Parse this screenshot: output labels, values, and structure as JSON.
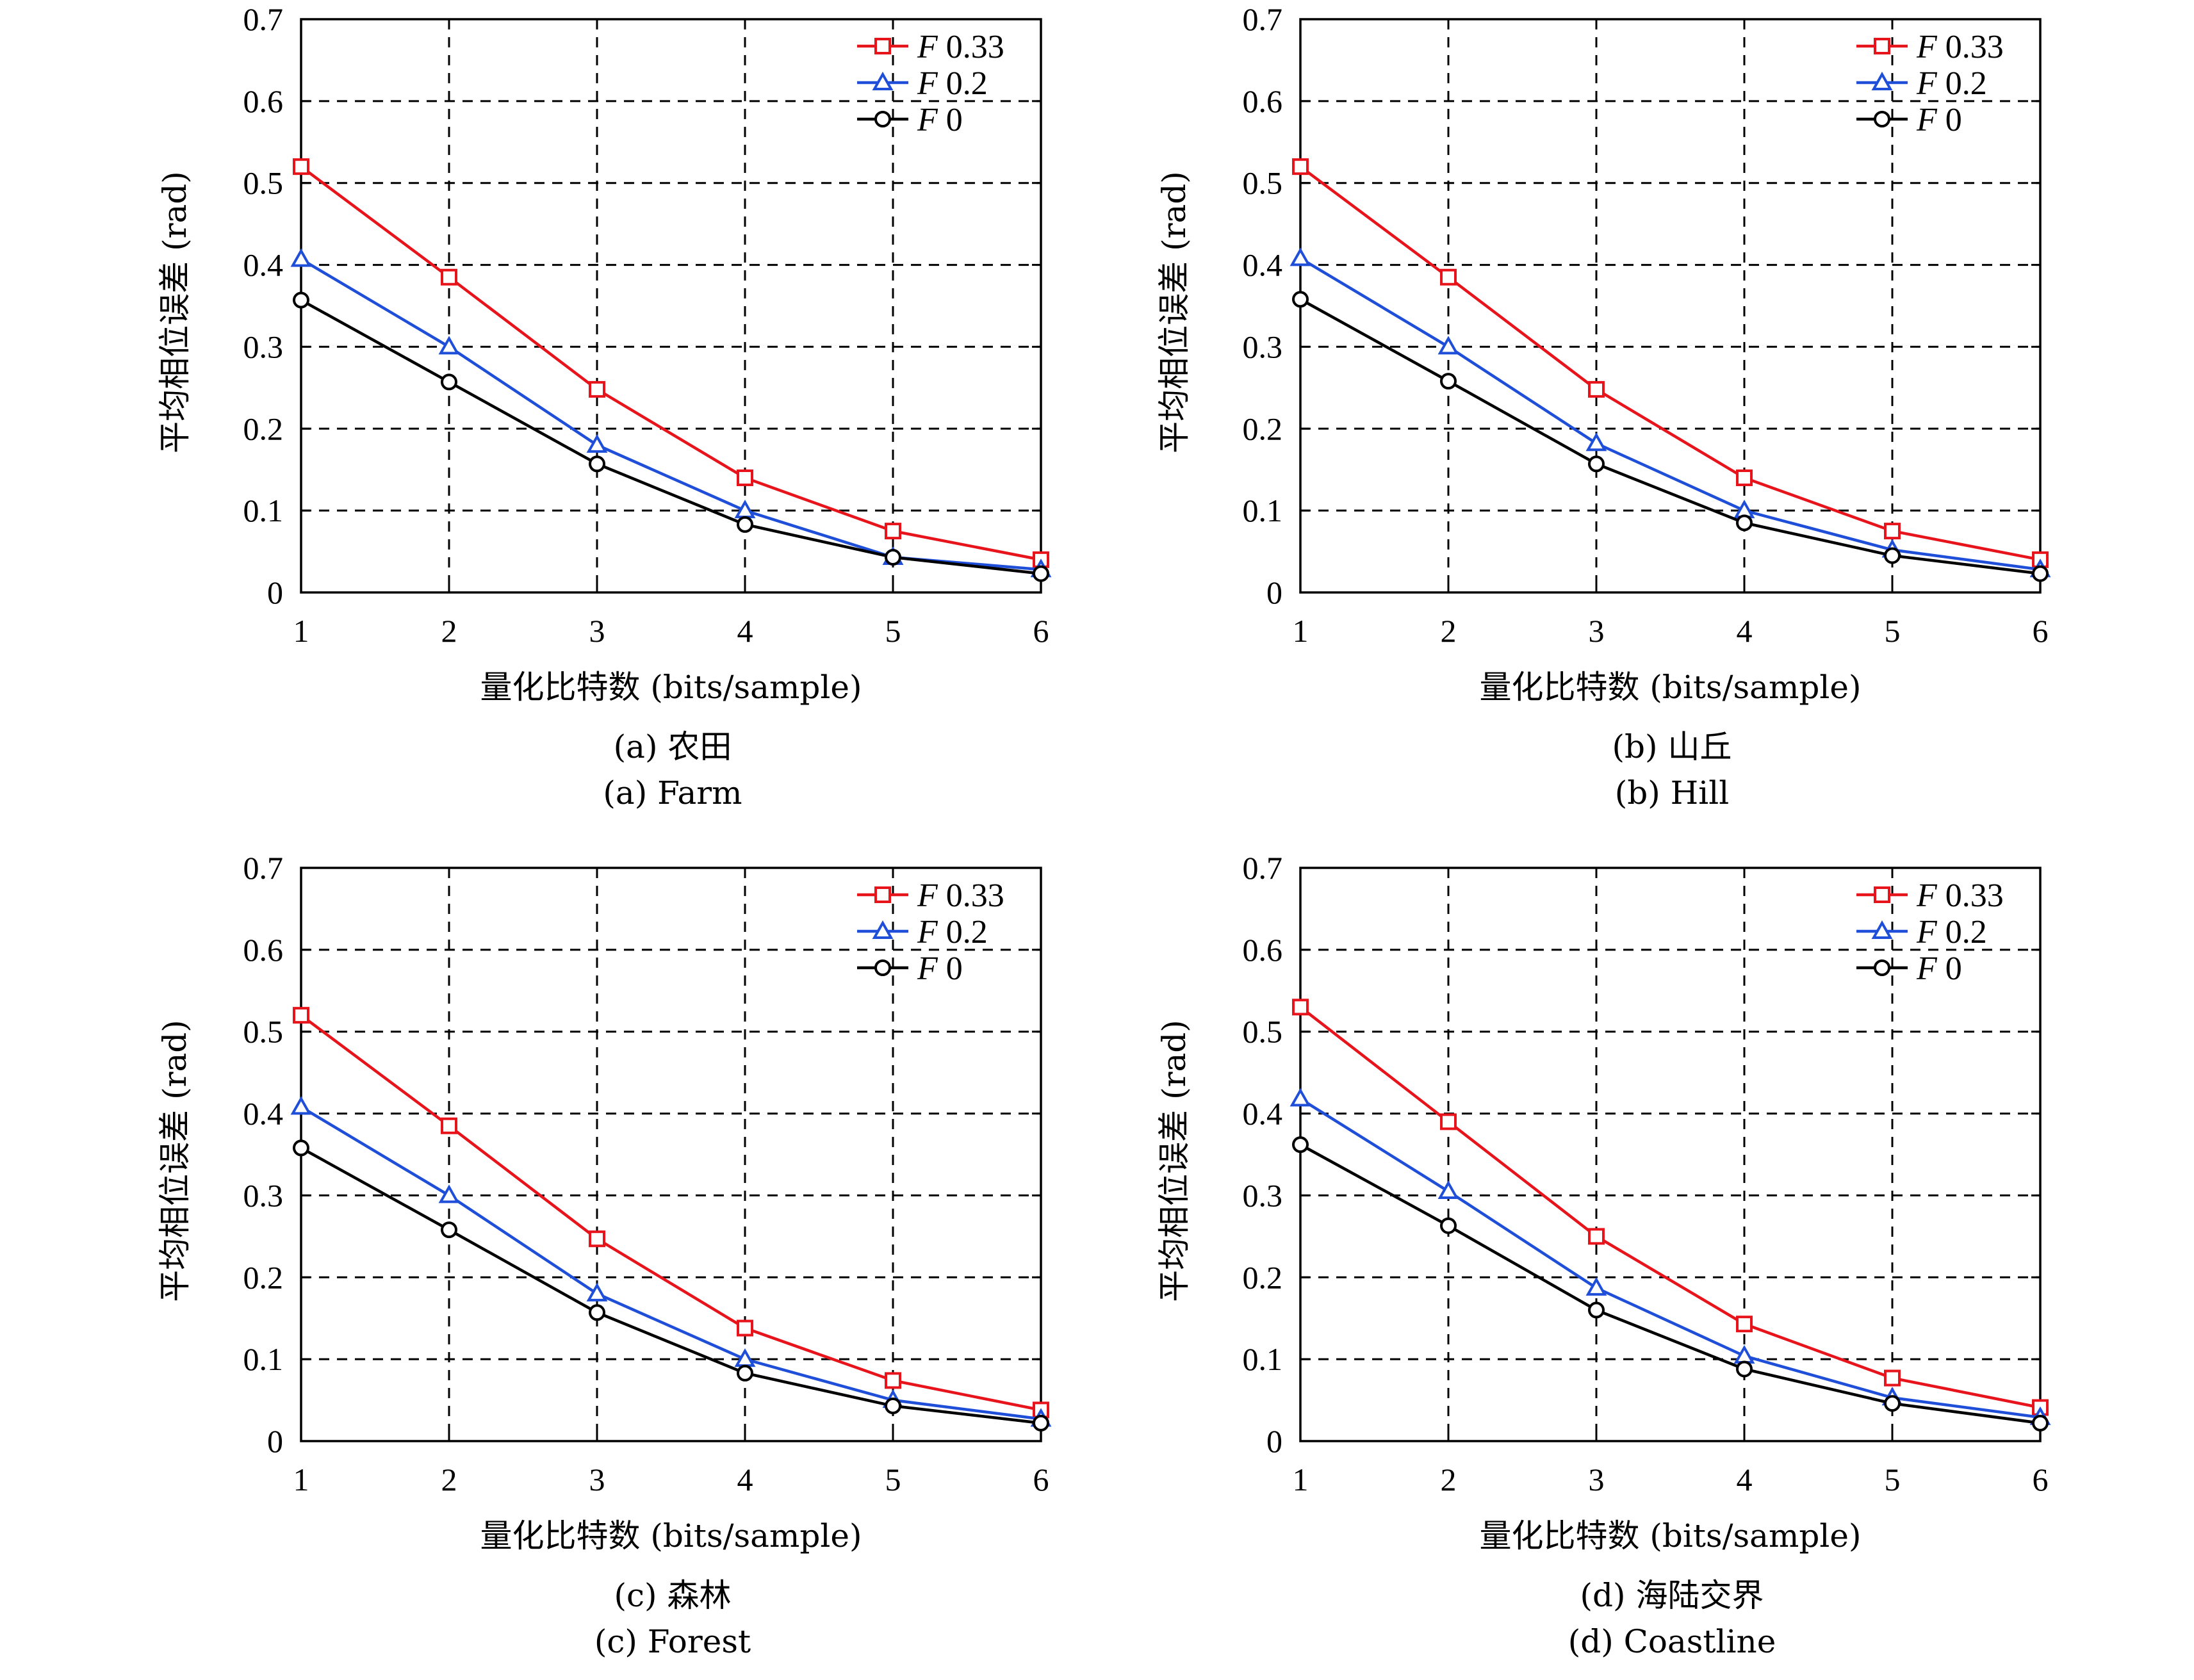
{
  "chart_data": [
    {
      "type": "line",
      "caption_cn": "(a) 农田",
      "caption_en": "(a) Farm",
      "xlabel": "量化比特数 (bits/sample)",
      "ylabel": "平均相位误差 (rad)",
      "x": [
        1,
        2,
        3,
        4,
        5,
        6
      ],
      "xlim": [
        1,
        6
      ],
      "ylim": [
        0,
        0.7
      ],
      "xticks": [
        "1",
        "2",
        "3",
        "4",
        "5",
        "6"
      ],
      "yticks": [
        "0",
        "0.1",
        "0.2",
        "0.3",
        "0.4",
        "0.5",
        "0.6",
        "0.7"
      ],
      "grid": true,
      "legend_position": "top-right",
      "series": [
        {
          "name_prefix": "F",
          "name_value": "0.33",
          "color": "#e8141c",
          "marker": "square",
          "values": [
            0.52,
            0.385,
            0.248,
            0.14,
            0.075,
            0.04
          ]
        },
        {
          "name_prefix": "F",
          "name_value": "0.2",
          "color": "#1f4fd8",
          "marker": "triangle",
          "values": [
            0.407,
            0.3,
            0.18,
            0.1,
            0.043,
            0.028
          ]
        },
        {
          "name_prefix": "F",
          "name_value": "0",
          "color": "#000000",
          "marker": "circle",
          "values": [
            0.357,
            0.257,
            0.157,
            0.083,
            0.043,
            0.023
          ]
        }
      ]
    },
    {
      "type": "line",
      "caption_cn": "(b) 山丘",
      "caption_en": "(b) Hill",
      "xlabel": "量化比特数 (bits/sample)",
      "ylabel": "平均相位误差 (rad)",
      "x": [
        1,
        2,
        3,
        4,
        5,
        6
      ],
      "xlim": [
        1,
        6
      ],
      "ylim": [
        0,
        0.7
      ],
      "xticks": [
        "1",
        "2",
        "3",
        "4",
        "5",
        "6"
      ],
      "yticks": [
        "0",
        "0.1",
        "0.2",
        "0.3",
        "0.4",
        "0.5",
        "0.6",
        "0.7"
      ],
      "grid": true,
      "legend_position": "top-right",
      "series": [
        {
          "name_prefix": "F",
          "name_value": "0.33",
          "color": "#e8141c",
          "marker": "square",
          "values": [
            0.52,
            0.385,
            0.248,
            0.14,
            0.075,
            0.04
          ]
        },
        {
          "name_prefix": "F",
          "name_value": "0.2",
          "color": "#1f4fd8",
          "marker": "triangle",
          "values": [
            0.408,
            0.3,
            0.182,
            0.1,
            0.052,
            0.028
          ]
        },
        {
          "name_prefix": "F",
          "name_value": "0",
          "color": "#000000",
          "marker": "circle",
          "values": [
            0.358,
            0.258,
            0.157,
            0.085,
            0.045,
            0.023
          ]
        }
      ]
    },
    {
      "type": "line",
      "caption_cn": "(c) 森林",
      "caption_en": "(c) Forest",
      "xlabel": "量化比特数 (bits/sample)",
      "ylabel": "平均相位误差 (rad)",
      "x": [
        1,
        2,
        3,
        4,
        5,
        6
      ],
      "xlim": [
        1,
        6
      ],
      "ylim": [
        0,
        0.7
      ],
      "xticks": [
        "1",
        "2",
        "3",
        "4",
        "5",
        "6"
      ],
      "yticks": [
        "0",
        "0.1",
        "0.2",
        "0.3",
        "0.4",
        "0.5",
        "0.6",
        "0.7"
      ],
      "grid": true,
      "legend_position": "top-right",
      "series": [
        {
          "name_prefix": "F",
          "name_value": "0.33",
          "color": "#e8141c",
          "marker": "square",
          "values": [
            0.52,
            0.385,
            0.247,
            0.138,
            0.074,
            0.038
          ]
        },
        {
          "name_prefix": "F",
          "name_value": "0.2",
          "color": "#1f4fd8",
          "marker": "triangle",
          "values": [
            0.408,
            0.3,
            0.18,
            0.1,
            0.05,
            0.027
          ]
        },
        {
          "name_prefix": "F",
          "name_value": "0",
          "color": "#000000",
          "marker": "circle",
          "values": [
            0.358,
            0.258,
            0.157,
            0.083,
            0.043,
            0.022
          ]
        }
      ]
    },
    {
      "type": "line",
      "caption_cn": "(d) 海陆交界",
      "caption_en": "(d) Coastline",
      "xlabel": "量化比特数 (bits/sample)",
      "ylabel": "平均相位误差 (rad)",
      "x": [
        1,
        2,
        3,
        4,
        5,
        6
      ],
      "xlim": [
        1,
        6
      ],
      "ylim": [
        0,
        0.7
      ],
      "xticks": [
        "1",
        "2",
        "3",
        "4",
        "5",
        "6"
      ],
      "yticks": [
        "0",
        "0.1",
        "0.2",
        "0.3",
        "0.4",
        "0.5",
        "0.6",
        "0.7"
      ],
      "grid": true,
      "legend_position": "top-right",
      "series": [
        {
          "name_prefix": "F",
          "name_value": "0.33",
          "color": "#e8141c",
          "marker": "square",
          "values": [
            0.53,
            0.39,
            0.25,
            0.143,
            0.077,
            0.041
          ]
        },
        {
          "name_prefix": "F",
          "name_value": "0.2",
          "color": "#1f4fd8",
          "marker": "triangle",
          "values": [
            0.418,
            0.305,
            0.187,
            0.104,
            0.053,
            0.029
          ]
        },
        {
          "name_prefix": "F",
          "name_value": "0",
          "color": "#000000",
          "marker": "circle",
          "values": [
            0.362,
            0.263,
            0.16,
            0.088,
            0.046,
            0.022
          ]
        }
      ]
    }
  ]
}
